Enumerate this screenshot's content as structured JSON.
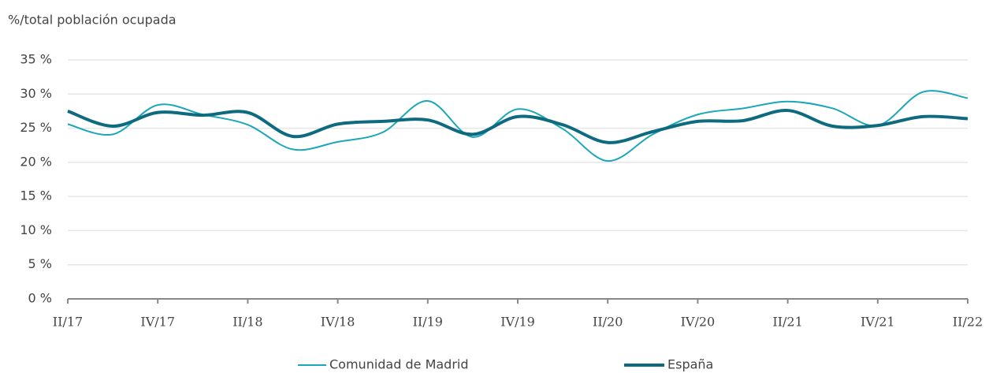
{
  "chart_data": {
    "type": "line",
    "y_axis_label": "%/total población ocupada",
    "categories": [
      "II/17",
      null,
      "IV/17",
      null,
      "II/18",
      null,
      "IV/18",
      null,
      "II/19",
      null,
      "IV/19",
      null,
      "II/20",
      null,
      "IV/20",
      null,
      "II/21",
      null,
      "IV/21",
      null,
      "II/22"
    ],
    "series": [
      {
        "name": "Comunidad de Madrid",
        "color": "#1ba7b8",
        "width": 2,
        "values": [
          25.6,
          24.1,
          28.4,
          27.0,
          25.5,
          21.9,
          23.0,
          24.4,
          29.0,
          23.7,
          27.8,
          24.9,
          20.2,
          24.1,
          27.0,
          27.9,
          28.9,
          27.9,
          25.4,
          30.3,
          29.4
        ]
      },
      {
        "name": "España",
        "color": "#0e6a7e",
        "width": 4,
        "values": [
          27.5,
          25.3,
          27.3,
          26.9,
          27.3,
          23.8,
          25.6,
          26.0,
          26.2,
          24.1,
          26.7,
          25.5,
          22.9,
          24.5,
          26.0,
          26.1,
          27.6,
          25.3,
          25.4,
          26.7,
          26.4
        ]
      }
    ],
    "ylim": [
      0,
      35
    ],
    "yticks": [
      {
        "value": 0,
        "label": "0 %"
      },
      {
        "value": 5,
        "label": "5 %"
      },
      {
        "value": 10,
        "label": "10 %"
      },
      {
        "value": 15,
        "label": "15 %"
      },
      {
        "value": 20,
        "label": "20 %"
      },
      {
        "value": 25,
        "label": "25 %"
      },
      {
        "value": 30,
        "label": "30 %"
      },
      {
        "value": 35,
        "label": "35 %"
      }
    ],
    "grid": true,
    "legend": "bottom"
  }
}
